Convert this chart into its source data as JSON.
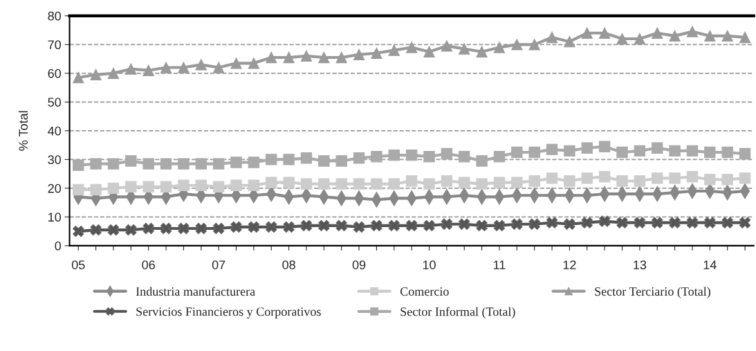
{
  "chart_data": {
    "type": "line",
    "ylabel": "% Total",
    "categories": [
      "05",
      null,
      null,
      null,
      "06",
      null,
      null,
      null,
      "07",
      null,
      null,
      null,
      "08",
      null,
      null,
      null,
      "09",
      null,
      null,
      null,
      "10",
      null,
      null,
      null,
      "11",
      null,
      null,
      null,
      "12",
      null,
      null,
      null,
      "13",
      null,
      null,
      null,
      "14",
      null,
      null
    ],
    "ylim": [
      0,
      80
    ],
    "yticks": [
      0,
      10,
      20,
      30,
      40,
      50,
      60,
      70,
      80
    ],
    "grid": "y",
    "legend": "bottom",
    "series": [
      {
        "name": "Industria manufacturera",
        "color": "#888888",
        "marker": "diamond",
        "values": [
          17,
          16.5,
          17,
          17,
          17,
          17,
          18,
          17.5,
          17.5,
          17.5,
          17.5,
          18,
          17,
          17.5,
          17,
          16.5,
          16.5,
          16,
          16.5,
          16.5,
          17,
          17,
          17.5,
          17,
          17,
          17.5,
          17.5,
          17.5,
          17.5,
          17.5,
          18,
          18,
          18,
          18,
          18.5,
          19,
          19,
          18.5,
          19
        ]
      },
      {
        "name": "Comercio",
        "color": "#cccccc",
        "marker": "square",
        "values": [
          19.5,
          19.5,
          20,
          20.5,
          20.5,
          20.5,
          21,
          21,
          20.5,
          21,
          21,
          22,
          22,
          21.5,
          21.5,
          21.5,
          21.5,
          21.5,
          21.5,
          22.5,
          21.5,
          22.5,
          22,
          21.5,
          22,
          22,
          22.5,
          23.5,
          22.5,
          23.5,
          24,
          22.5,
          22.5,
          23.5,
          23.5,
          24,
          23,
          23,
          23.5
        ]
      },
      {
        "name": "Sector Terciario (Total)",
        "color": "#9a9a9a",
        "marker": "triangle",
        "values": [
          58.5,
          59.5,
          60,
          61.5,
          61,
          62,
          62,
          63,
          62,
          63.5,
          63.5,
          65.5,
          65.5,
          66,
          65.5,
          65.5,
          66.5,
          67,
          68,
          69,
          67.5,
          69.5,
          68.5,
          67.5,
          69,
          70,
          70,
          72.5,
          71,
          74,
          74,
          72,
          72,
          74,
          73,
          74.5,
          73,
          73,
          72.5
        ]
      },
      {
        "name": "Servicios Financieros y Corporativos",
        "color": "#555555",
        "marker": "cross",
        "values": [
          5,
          5.5,
          5.5,
          5.5,
          6,
          6,
          6,
          6,
          6,
          6.5,
          6.5,
          6.5,
          6.5,
          7,
          7,
          7,
          6.5,
          7,
          7,
          7,
          7,
          7.5,
          7.5,
          7,
          7,
          7.5,
          7.5,
          8,
          7.5,
          8,
          8.5,
          8,
          8,
          8,
          8,
          8,
          8,
          8,
          8
        ]
      },
      {
        "name": "Sector Informal (Total)",
        "color": "#aaaaaa",
        "marker": "square",
        "values": [
          28,
          28.5,
          28.5,
          29.5,
          28.5,
          28.5,
          28.5,
          28.5,
          28.5,
          29,
          29,
          30,
          30,
          30.5,
          29.5,
          29.5,
          30.5,
          31,
          31.5,
          31.5,
          31,
          32,
          31,
          29.5,
          31,
          32.5,
          32.5,
          33.5,
          33,
          34,
          34.5,
          32.5,
          33,
          34,
          33,
          33,
          32.5,
          32.5,
          32
        ]
      }
    ]
  }
}
